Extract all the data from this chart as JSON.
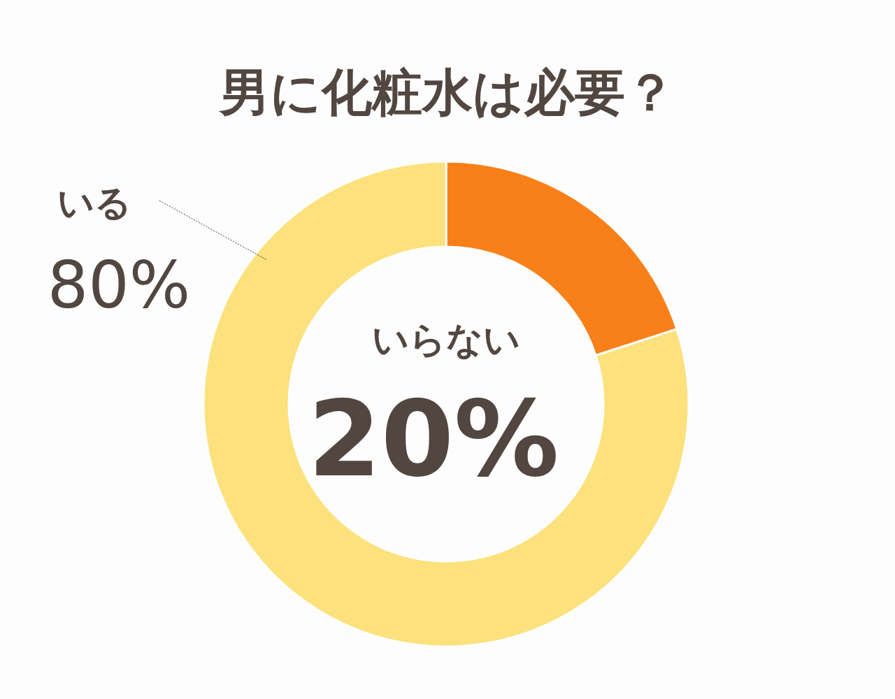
{
  "chart_data": {
    "type": "donut",
    "title": "男に化粧水は必要？",
    "categories": [
      "いらない",
      "いる"
    ],
    "values": [
      20,
      80
    ],
    "colors": [
      "#f98018",
      "#fde17c"
    ],
    "value_labels": [
      "20%",
      "80%"
    ]
  }
}
